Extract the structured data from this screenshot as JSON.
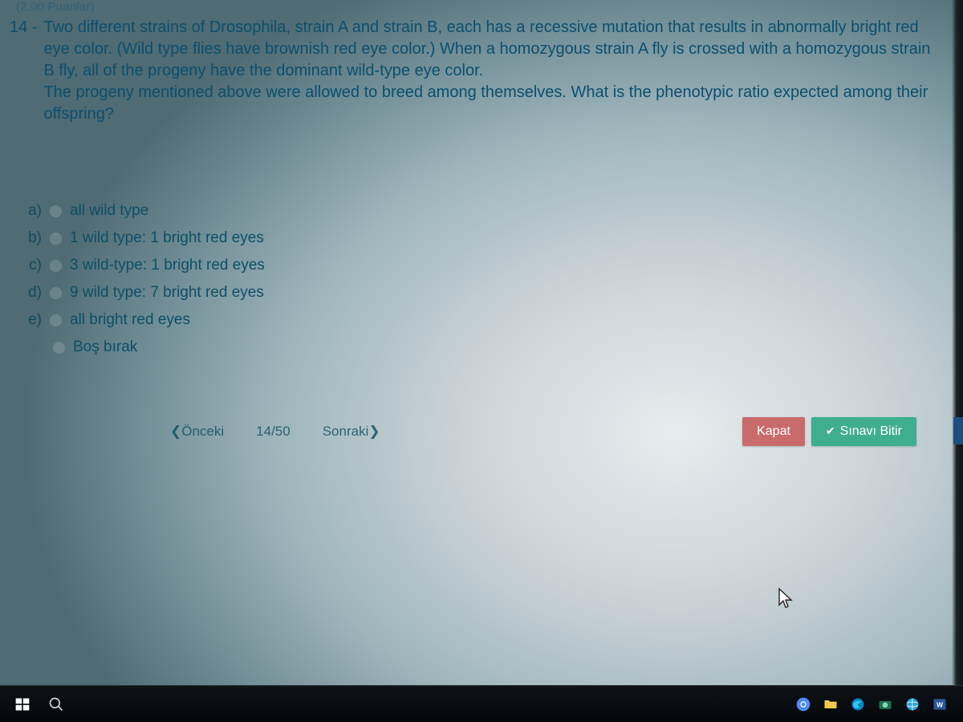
{
  "topFragment": "(2,00 Puanlar)",
  "question": {
    "number": "14 -",
    "text": "Two different strains of Drosophila, strain A and strain B, each has a recessive mutation that results in abnormally bright red eye color. (Wild type flies have brownish red eye color.) When a homozygous strain A fly is crossed with a homozygous strain B fly, all of the progeny have the dominant wild-type eye color.\nThe progeny mentioned above were allowed to breed among themselves. What is the phenotypic ratio expected among their offspring?"
  },
  "options": [
    {
      "letter": "a)",
      "label": "all wild type"
    },
    {
      "letter": "b)",
      "label": "1 wild type: 1 bright red eyes"
    },
    {
      "letter": "c)",
      "label": "3 wild-type: 1 bright red eyes"
    },
    {
      "letter": "d)",
      "label": "9 wild type: 7 bright red eyes"
    },
    {
      "letter": "e)",
      "label": "all bright red eyes"
    }
  ],
  "leaveBlank": "Boş bırak",
  "nav": {
    "prev": "❮Önceki",
    "counter": "14/50",
    "next": "Sonraki❯",
    "close": "Kapat",
    "finish": "Sınavı Bitir"
  },
  "colors": {
    "closeBtn": "#c96b6b",
    "finishBtn": "#3fae8f",
    "questionText": "#0b4f6f"
  }
}
